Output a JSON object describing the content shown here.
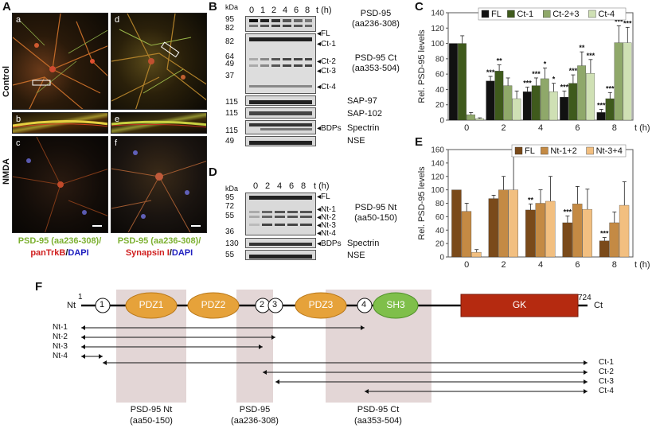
{
  "panelA": {
    "label": "A",
    "rowLabels": {
      "control": "Control",
      "nmda": "NMDA"
    },
    "subs": [
      "a",
      "d",
      "b",
      "e",
      "c",
      "f"
    ],
    "caption1": {
      "green": "PSD-95 (aa236-308)/",
      "red": "panTrkB",
      "sep": "/",
      "blue": "DAPI"
    },
    "caption2": {
      "green": "PSD-95 (aa236-308)/",
      "red": "Synapsin I",
      "sep": "/",
      "blue": "DAPI"
    }
  },
  "panelB": {
    "label": "B",
    "kda": "kDa",
    "times": [
      "0",
      "1",
      "2",
      "4",
      "6",
      "8"
    ],
    "tunit": "t (h)",
    "mw": [
      "95",
      "82",
      "82",
      "64",
      "49",
      "37",
      "115",
      "115",
      "115",
      "49"
    ],
    "bands": [
      "FL",
      "Ct-1",
      "Ct-2",
      "Ct-3",
      "Ct-4",
      "BDPs"
    ],
    "rightLabels": [
      "PSD-95",
      "(aa236-308)",
      "PSD-95 Ct",
      "(aa353-504)",
      "SAP-97",
      "SAP-102",
      "Spectrin",
      "NSE"
    ]
  },
  "panelD": {
    "label": "D",
    "kda": "kDa",
    "times": [
      "0",
      "2",
      "4",
      "6",
      "8"
    ],
    "tunit": "t (h)",
    "mw": [
      "95",
      "72",
      "55",
      "36",
      "130",
      "55"
    ],
    "bands": [
      "FL",
      "Nt-1",
      "Nt-2",
      "Nt-3",
      "Nt-4",
      "BDPs"
    ],
    "rightLabels": [
      "PSD-95 Nt",
      "(aa50-150)",
      "Spectrin",
      "NSE"
    ]
  },
  "chart_data": [
    {
      "panel": "C",
      "type": "bar",
      "ylabel": "Rel. PSD-95 levels",
      "xlabel": "t (h)",
      "ylim": [
        0,
        140
      ],
      "yticks": [
        0,
        20,
        40,
        60,
        80,
        100,
        120,
        140
      ],
      "categories": [
        "0",
        "2",
        "4",
        "6",
        "8"
      ],
      "series": [
        {
          "name": "FL",
          "color": "#111111",
          "values": [
            100,
            51,
            37,
            30,
            10
          ],
          "err": [
            0,
            6,
            6,
            8,
            4
          ]
        },
        {
          "name": "Ct-1",
          "color": "#3f5a1c",
          "values": [
            100,
            64,
            45,
            48,
            28
          ],
          "err": [
            10,
            8,
            10,
            11,
            8
          ]
        },
        {
          "name": "Ct-2+3",
          "color": "#8fa86a",
          "values": [
            7,
            45,
            54,
            71,
            101
          ],
          "err": [
            3,
            10,
            14,
            18,
            22
          ]
        },
        {
          "name": "Ct-4",
          "color": "#cfe0b4",
          "values": [
            2,
            28,
            37,
            61,
            101
          ],
          "err": [
            1,
            10,
            11,
            18,
            20
          ]
        }
      ],
      "annotations": [
        {
          "x": "2",
          "series": 0,
          "text": "***"
        },
        {
          "x": "2",
          "series": 1,
          "text": "**"
        },
        {
          "x": "4",
          "series": 0,
          "text": "***"
        },
        {
          "x": "4",
          "series": 1,
          "text": "***"
        },
        {
          "x": "4",
          "series": 2,
          "text": "*"
        },
        {
          "x": "4",
          "series": 3,
          "text": "*"
        },
        {
          "x": "6",
          "series": 0,
          "text": "***"
        },
        {
          "x": "6",
          "series": 1,
          "text": "***"
        },
        {
          "x": "6",
          "series": 2,
          "text": "**"
        },
        {
          "x": "6",
          "series": 3,
          "text": "***"
        },
        {
          "x": "8",
          "series": 0,
          "text": "***"
        },
        {
          "x": "8",
          "series": 1,
          "text": "***"
        },
        {
          "x": "8",
          "series": 2,
          "text": "***"
        },
        {
          "x": "8",
          "series": 3,
          "text": "***"
        }
      ]
    },
    {
      "panel": "E",
      "type": "bar",
      "ylabel": "Rel. PSD-95 levels",
      "xlabel": "t (h)",
      "ylim": [
        0,
        160
      ],
      "yticks": [
        0,
        20,
        40,
        60,
        80,
        100,
        120,
        140,
        160
      ],
      "categories": [
        "0",
        "2",
        "4",
        "6",
        "8"
      ],
      "series": [
        {
          "name": "FL",
          "color": "#7a4a1a",
          "values": [
            100,
            87,
            70,
            51,
            24
          ],
          "err": [
            0,
            5,
            9,
            10,
            5
          ]
        },
        {
          "name": "Nt-1+2",
          "color": "#c48a44",
          "values": [
            68,
            100,
            80,
            79,
            51
          ],
          "err": [
            12,
            20,
            20,
            26,
            16
          ]
        },
        {
          "name": "Nt-3+4",
          "color": "#f2bf80",
          "values": [
            7,
            100,
            83,
            71,
            77
          ],
          "err": [
            4,
            50,
            37,
            30,
            35
          ]
        }
      ],
      "annotations": [
        {
          "x": "4",
          "series": 0,
          "text": "**"
        },
        {
          "x": "6",
          "series": 0,
          "text": "***"
        },
        {
          "x": "8",
          "series": 0,
          "text": "***"
        }
      ]
    }
  ],
  "panelF": {
    "label": "F",
    "start": "1",
    "end": "724",
    "nt": "Nt",
    "ct": "Ct",
    "sites": [
      "1",
      "2",
      "3",
      "4"
    ],
    "domains": [
      "PDZ1",
      "PDZ2",
      "PDZ3",
      "SH3",
      "GK"
    ],
    "ntFrags": [
      "Nt-1",
      "Nt-2",
      "Nt-3",
      "Nt-4"
    ],
    "ctFrags": [
      "Ct-1",
      "Ct-2",
      "Ct-3",
      "Ct-4"
    ],
    "epitopes": [
      {
        "name": "PSD-95 Nt",
        "range": "(aa50-150)"
      },
      {
        "name": "PSD-95",
        "range": "(aa236-308)"
      },
      {
        "name": "PSD-95 Ct",
        "range": "(aa353-504)"
      }
    ]
  }
}
